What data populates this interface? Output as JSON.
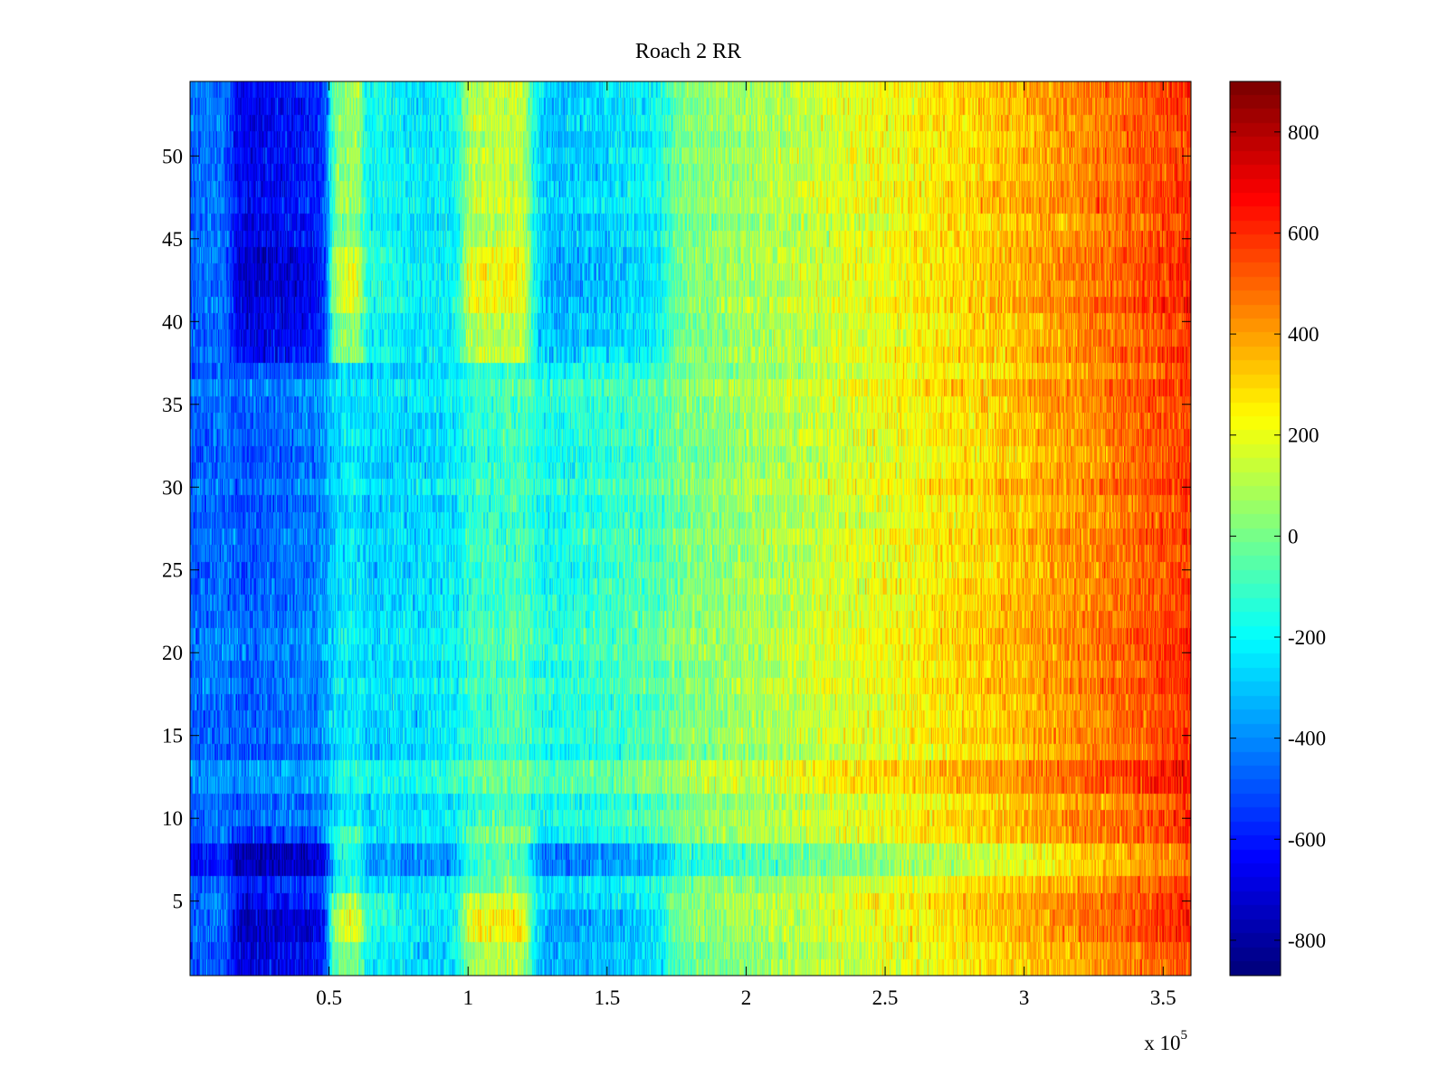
{
  "chart_data": {
    "type": "heatmap",
    "title": "Roach 2 RR",
    "xlabel": "",
    "ylabel": "",
    "x_range": [
      0,
      360000
    ],
    "y_range": [
      0.5,
      54.5
    ],
    "x_ticks": [
      {
        "value": 50000,
        "label": "0.5"
      },
      {
        "value": 100000,
        "label": "1"
      },
      {
        "value": 150000,
        "label": "1.5"
      },
      {
        "value": 200000,
        "label": "2"
      },
      {
        "value": 250000,
        "label": "2.5"
      },
      {
        "value": 300000,
        "label": "3"
      },
      {
        "value": 350000,
        "label": "3.5"
      }
    ],
    "x_exponent_label": {
      "base": "x 10",
      "exponent": "5"
    },
    "y_ticks": [
      {
        "value": 5,
        "label": "5"
      },
      {
        "value": 10,
        "label": "10"
      },
      {
        "value": 15,
        "label": "15"
      },
      {
        "value": 20,
        "label": "20"
      },
      {
        "value": 25,
        "label": "25"
      },
      {
        "value": 30,
        "label": "30"
      },
      {
        "value": 35,
        "label": "35"
      },
      {
        "value": 40,
        "label": "40"
      },
      {
        "value": 45,
        "label": "45"
      },
      {
        "value": 50,
        "label": "50"
      }
    ],
    "colorbar": {
      "range": [
        -870,
        900
      ],
      "colormap": "jet",
      "ticks": [
        {
          "value": 800,
          "label": "800"
        },
        {
          "value": 600,
          "label": "600"
        },
        {
          "value": 400,
          "label": "400"
        },
        {
          "value": 200,
          "label": "200"
        },
        {
          "value": 0,
          "label": "0"
        },
        {
          "value": -200,
          "label": "-200"
        },
        {
          "value": -400,
          "label": "-400"
        },
        {
          "value": -600,
          "label": "-600"
        },
        {
          "value": -800,
          "label": "-800"
        }
      ]
    },
    "rows": 54,
    "x_points": 360000,
    "approximate_structure": {
      "left_cold_band_x": [
        15000,
        50000
      ],
      "warm_band_1_x": [
        50000,
        60000
      ],
      "warm_band_2_x": [
        98000,
        122000
      ],
      "cold_band_2_x": [
        125000,
        172000
      ],
      "right_hot_region_x": [
        300000,
        360000
      ],
      "row_pattern_dominant_rows": [
        3,
        4,
        7,
        8,
        41,
        42,
        43,
        44
      ],
      "value_min": -870,
      "value_max": 900
    }
  }
}
